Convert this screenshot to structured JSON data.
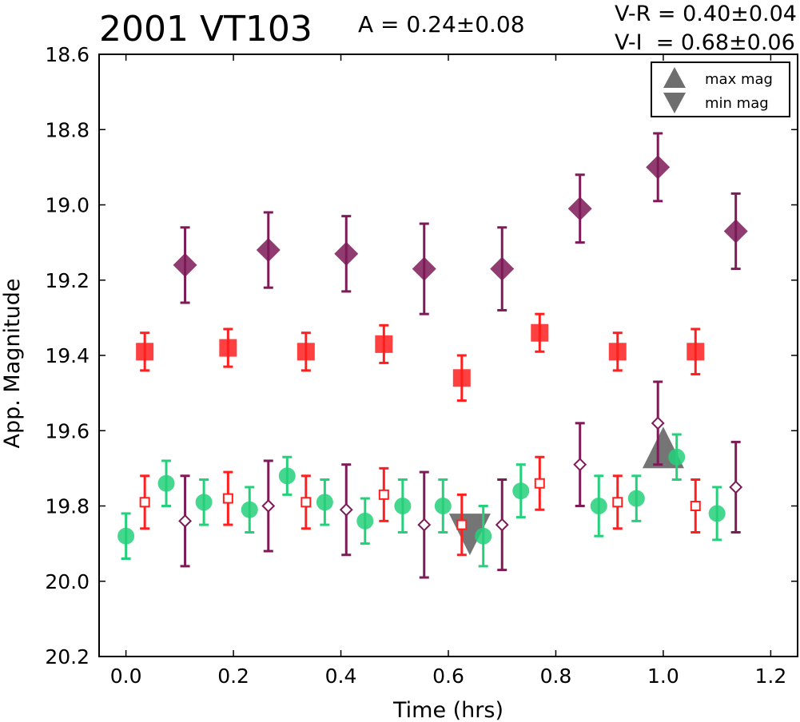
{
  "header": {
    "object_name": "2001 VT103",
    "amplitude": "A  = 0.24±0.08",
    "color_vr": "V-R = 0.40±0.04",
    "color_vi": "V-I  = 0.68±0.06"
  },
  "legend": {
    "max_label": "max mag",
    "min_label": "min mag"
  },
  "colors": {
    "purple": "#7d1a57",
    "red": "#ff1f1f",
    "green": "#25d07a",
    "marker_gray": "#6e6e6e"
  },
  "chart_data": {
    "type": "scatter",
    "title": "2001 VT103",
    "xlabel": "Time (hrs)",
    "ylabel": "App. Magnitude",
    "xlim": [
      -0.05,
      1.25
    ],
    "ylim": [
      20.2,
      18.6
    ],
    "y_inverted": true,
    "xticks": [
      "0.0",
      "0.2",
      "0.4",
      "0.6",
      "0.8",
      "1.0",
      "1.2"
    ],
    "xtick_values": [
      0.0,
      0.2,
      0.4,
      0.6,
      0.8,
      1.0,
      1.2
    ],
    "yticks": [
      "18.6",
      "18.8",
      "19.0",
      "19.2",
      "19.4",
      "19.6",
      "19.8",
      "20.0",
      "20.2"
    ],
    "ytick_values": [
      18.6,
      18.8,
      19.0,
      19.2,
      19.4,
      19.6,
      19.8,
      20.0,
      20.2
    ],
    "legend_position": "top-right",
    "series": [
      {
        "marker": "filled-diamond",
        "color": "#7d1a57",
        "points": [
          {
            "x": 0.11,
            "y": 19.16,
            "err": 0.1
          },
          {
            "x": 0.265,
            "y": 19.12,
            "err": 0.1
          },
          {
            "x": 0.41,
            "y": 19.13,
            "err": 0.1
          },
          {
            "x": 0.555,
            "y": 19.17,
            "err": 0.12
          },
          {
            "x": 0.7,
            "y": 19.17,
            "err": 0.11
          },
          {
            "x": 0.845,
            "y": 19.01,
            "err": 0.09
          },
          {
            "x": 0.99,
            "y": 18.9,
            "err": 0.09
          },
          {
            "x": 1.135,
            "y": 19.07,
            "err": 0.1
          }
        ]
      },
      {
        "marker": "filled-square",
        "color": "#ff1f1f",
        "points": [
          {
            "x": 0.035,
            "y": 19.39,
            "err": 0.05
          },
          {
            "x": 0.19,
            "y": 19.38,
            "err": 0.05
          },
          {
            "x": 0.335,
            "y": 19.39,
            "err": 0.05
          },
          {
            "x": 0.48,
            "y": 19.37,
            "err": 0.05
          },
          {
            "x": 0.625,
            "y": 19.46,
            "err": 0.06
          },
          {
            "x": 0.77,
            "y": 19.34,
            "err": 0.05
          },
          {
            "x": 0.915,
            "y": 19.39,
            "err": 0.05
          },
          {
            "x": 1.06,
            "y": 19.39,
            "err": 0.06
          }
        ]
      },
      {
        "marker": "filled-circle",
        "color": "#25d07a",
        "points": [
          {
            "x": 0.0,
            "y": 19.88,
            "err": 0.06
          },
          {
            "x": 0.075,
            "y": 19.74,
            "err": 0.06
          },
          {
            "x": 0.145,
            "y": 19.79,
            "err": 0.06
          },
          {
            "x": 0.23,
            "y": 19.81,
            "err": 0.06
          },
          {
            "x": 0.3,
            "y": 19.72,
            "err": 0.05
          },
          {
            "x": 0.37,
            "y": 19.79,
            "err": 0.06
          },
          {
            "x": 0.445,
            "y": 19.84,
            "err": 0.06
          },
          {
            "x": 0.515,
            "y": 19.8,
            "err": 0.07
          },
          {
            "x": 0.59,
            "y": 19.8,
            "err": 0.07
          },
          {
            "x": 0.665,
            "y": 19.88,
            "err": 0.08
          },
          {
            "x": 0.735,
            "y": 19.76,
            "err": 0.07
          },
          {
            "x": 0.88,
            "y": 19.8,
            "err": 0.08
          },
          {
            "x": 0.95,
            "y": 19.78,
            "err": 0.06
          },
          {
            "x": 1.025,
            "y": 19.67,
            "err": 0.06
          },
          {
            "x": 1.1,
            "y": 19.82,
            "err": 0.07
          }
        ]
      },
      {
        "marker": "open-square",
        "color": "#ff1f1f",
        "points": [
          {
            "x": 0.035,
            "y": 19.79,
            "err": 0.07
          },
          {
            "x": 0.19,
            "y": 19.78,
            "err": 0.07
          },
          {
            "x": 0.335,
            "y": 19.79,
            "err": 0.07
          },
          {
            "x": 0.48,
            "y": 19.77,
            "err": 0.07
          },
          {
            "x": 0.625,
            "y": 19.85,
            "err": 0.08
          },
          {
            "x": 0.77,
            "y": 19.74,
            "err": 0.07
          },
          {
            "x": 0.915,
            "y": 19.79,
            "err": 0.07
          },
          {
            "x": 1.06,
            "y": 19.8,
            "err": 0.07
          }
        ]
      },
      {
        "marker": "open-diamond",
        "color": "#7d1a57",
        "points": [
          {
            "x": 0.11,
            "y": 19.84,
            "err": 0.12
          },
          {
            "x": 0.265,
            "y": 19.8,
            "err": 0.12
          },
          {
            "x": 0.41,
            "y": 19.81,
            "err": 0.12
          },
          {
            "x": 0.555,
            "y": 19.85,
            "err": 0.14
          },
          {
            "x": 0.7,
            "y": 19.85,
            "err": 0.12
          },
          {
            "x": 0.845,
            "y": 19.69,
            "err": 0.11
          },
          {
            "x": 0.99,
            "y": 19.58,
            "err": 0.11
          },
          {
            "x": 1.135,
            "y": 19.75,
            "err": 0.12
          }
        ]
      }
    ],
    "extrema_markers": [
      {
        "kind": "max",
        "x": 1.0,
        "y": 19.65
      },
      {
        "kind": "min",
        "x": 0.64,
        "y": 19.87
      }
    ]
  }
}
